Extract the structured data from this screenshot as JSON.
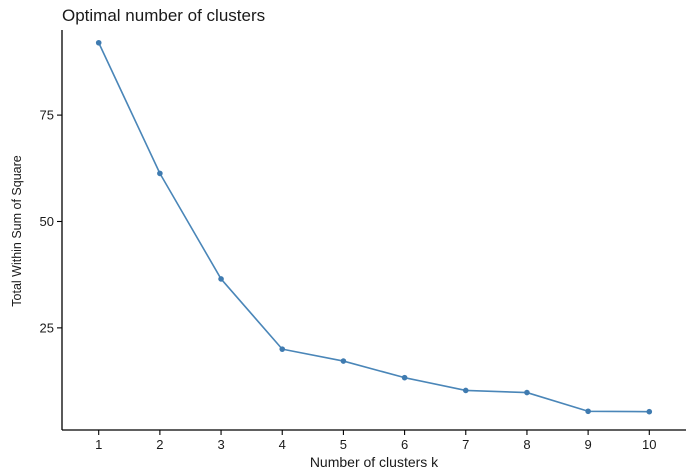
{
  "chart_data": {
    "type": "line",
    "title": "Optimal number of clusters",
    "xlabel": "Number of clusters k",
    "ylabel": "Total Within Sum of Square",
    "x": [
      1,
      2,
      3,
      4,
      5,
      6,
      7,
      8,
      9,
      10
    ],
    "x_tick_labels": [
      "1",
      "2",
      "3",
      "4",
      "5",
      "6",
      "7",
      "8",
      "9",
      "10"
    ],
    "series": [
      {
        "values": [
          92,
          61.3,
          36.5,
          20,
          17.2,
          13.3,
          10.3,
          9.8,
          5.4,
          5.3
        ]
      }
    ],
    "y_ticks": [
      25,
      50,
      75
    ],
    "y_tick_labels": [
      "25",
      "50",
      "75"
    ],
    "xlim": [
      0.4,
      10.6
    ],
    "ylim": [
      1,
      95
    ],
    "grid": false,
    "legend": "none",
    "colors": {
      "line": "#4a86b8",
      "point": "#3f7bb0",
      "axis": "#000000",
      "text": "#1a1a1a"
    }
  }
}
